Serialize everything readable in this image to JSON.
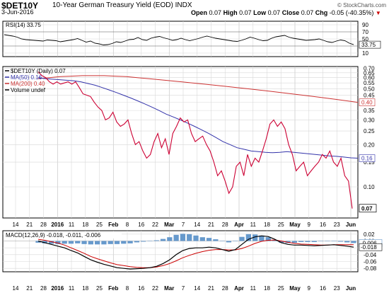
{
  "header": {
    "symbol": "$DET10Y",
    "description": "10-Year German Treasury Yield (EOD)",
    "exchange": "INDX",
    "date": "3-Jun-2016",
    "open_label": "Open",
    "open": "0.07",
    "high_label": "High",
    "high": "0.07",
    "low_label": "Low",
    "low": "0.07",
    "close_label": "Close",
    "close": "0.07",
    "chg_label": "Chg",
    "chg": "-0.05 (-40.35%)",
    "chg_icon": "down-triangle-icon",
    "watermark": "© StockCharts.com"
  },
  "colors": {
    "price": "#cc0033",
    "ma50": "#3333aa",
    "ma200": "#cc3333",
    "macd": "#000000",
    "signal": "#cc0000",
    "histogram": "#6699cc",
    "grid": "#d8d8d8",
    "rsi": "#000000"
  },
  "chart_data": [
    {
      "type": "line",
      "panel": "rsi",
      "legend": "RSI(14) 33.75",
      "y_ticks": [
        "90",
        "70",
        "50",
        "30",
        "10"
      ],
      "ylim": [
        0,
        100
      ],
      "current_value_label": "33.75",
      "series": [
        {
          "name": "RSI(14)",
          "values": [
            62,
            60,
            58,
            55,
            50,
            48,
            47,
            46,
            45,
            44,
            47,
            46,
            45,
            42,
            44,
            46,
            48,
            51,
            46,
            41,
            44,
            38,
            36,
            33,
            34,
            37,
            42,
            40,
            44,
            48,
            49,
            54,
            48,
            46,
            52,
            55,
            57,
            53,
            50,
            46,
            48,
            52,
            48,
            45,
            48,
            51,
            55,
            58,
            55,
            52,
            50,
            48,
            46,
            44,
            43,
            46,
            50,
            55,
            52,
            48,
            45,
            46,
            52,
            56,
            58,
            60,
            55,
            52,
            50,
            48,
            46,
            47,
            48,
            50,
            46,
            42,
            40,
            44,
            47,
            45,
            38,
            33.75
          ]
        }
      ]
    },
    {
      "type": "line",
      "panel": "price",
      "title": "$DET10Y (Daily) 0.07",
      "legend": [
        "$DET10Y (Daily) 0.07",
        "MA(50) 0.16",
        "MA(200) 0.40",
        "Volume undef"
      ],
      "scale": "log",
      "y_ticks": [
        "0.70",
        "0.65",
        "0.60",
        "0.55",
        "0.50",
        "0.45",
        "0.40",
        "0.35",
        "0.30",
        "0.25",
        "0.20",
        "0.15",
        "0.10"
      ],
      "ylim": [
        0.06,
        0.72
      ],
      "price_label": "0.07",
      "ma50_label": "0.16",
      "ma200_label": "0.40",
      "x_labels": [
        "14",
        "21",
        "28",
        "2016",
        "11",
        "18",
        "25",
        "Feb",
        "8",
        "16",
        "22",
        "Mar",
        "7",
        "14",
        "21",
        "28",
        "Apr",
        "11",
        "18",
        "25",
        "May",
        "9",
        "16",
        "23",
        "Jun"
      ],
      "series": [
        {
          "name": "$DET10Y",
          "values": [
            0.66,
            0.62,
            0.6,
            0.56,
            0.54,
            0.56,
            0.54,
            0.55,
            0.56,
            0.54,
            0.56,
            0.51,
            0.46,
            0.45,
            0.44,
            0.4,
            0.37,
            0.35,
            0.3,
            0.31,
            0.34,
            0.29,
            0.27,
            0.28,
            0.3,
            0.24,
            0.2,
            0.21,
            0.18,
            0.16,
            0.17,
            0.21,
            0.24,
            0.19,
            0.22,
            0.17,
            0.24,
            0.27,
            0.31,
            0.29,
            0.3,
            0.24,
            0.21,
            0.22,
            0.23,
            0.2,
            0.18,
            0.15,
            0.12,
            0.13,
            0.11,
            0.09,
            0.1,
            0.14,
            0.15,
            0.12,
            0.17,
            0.14,
            0.16,
            0.15,
            0.18,
            0.22,
            0.28,
            0.3,
            0.27,
            0.29,
            0.26,
            0.2,
            0.17,
            0.13,
            0.14,
            0.15,
            0.12,
            0.13,
            0.14,
            0.15,
            0.17,
            0.16,
            0.18,
            0.15,
            0.14,
            0.16,
            0.12,
            0.11,
            0.07
          ]
        },
        {
          "name": "MA(50)",
          "values": [
            0.6,
            0.59,
            0.585,
            0.58,
            0.575,
            0.57,
            0.56,
            0.545,
            0.53,
            0.51,
            0.49,
            0.47,
            0.45,
            0.43,
            0.41,
            0.39,
            0.37,
            0.35,
            0.33,
            0.315,
            0.3,
            0.285,
            0.27,
            0.255,
            0.24,
            0.225,
            0.21,
            0.2,
            0.19,
            0.185,
            0.18,
            0.178,
            0.176,
            0.175,
            0.176,
            0.178,
            0.176,
            0.174,
            0.172,
            0.17,
            0.168,
            0.166,
            0.165,
            0.163,
            0.161,
            0.16
          ]
        },
        {
          "name": "MA(200)",
          "values": [
            0.59,
            0.6,
            0.61,
            0.615,
            0.62,
            0.62,
            0.62,
            0.615,
            0.61,
            0.6,
            0.59,
            0.58,
            0.57,
            0.56,
            0.55,
            0.54,
            0.53,
            0.52,
            0.51,
            0.5,
            0.49,
            0.48,
            0.47,
            0.46,
            0.45,
            0.44,
            0.43,
            0.42,
            0.41,
            0.4
          ]
        }
      ]
    },
    {
      "type": "line",
      "panel": "macd",
      "legend": [
        "MACD(12,26,9) -0.018, -0.011, -0.006"
      ],
      "y_ticks": [
        "0.02",
        "0.00",
        "-0.02",
        "-0.04",
        "-0.06",
        "-0.08"
      ],
      "ylim": [
        -0.09,
        0.03
      ],
      "current_labels": [
        "-0.006",
        "-0.018"
      ],
      "x_labels": [
        "14",
        "21",
        "28",
        "2016",
        "11",
        "18",
        "25",
        "Feb",
        "8",
        "16",
        "22",
        "Mar",
        "7",
        "14",
        "21",
        "28",
        "Apr",
        "11",
        "18",
        "25",
        "May",
        "9",
        "16",
        "23",
        "Jun"
      ],
      "series": [
        {
          "name": "MACD",
          "values": [
            0.0,
            -0.005,
            -0.01,
            -0.015,
            -0.02,
            -0.028,
            -0.035,
            -0.045,
            -0.055,
            -0.062,
            -0.068,
            -0.073,
            -0.078,
            -0.08,
            -0.082,
            -0.081,
            -0.08,
            -0.078,
            -0.074,
            -0.066,
            -0.055,
            -0.04,
            -0.028,
            -0.022,
            -0.02,
            -0.02,
            -0.018,
            -0.02,
            -0.025,
            -0.03,
            -0.025,
            -0.01,
            0.005,
            0.012,
            0.015,
            0.013,
            0.005,
            -0.005,
            -0.01,
            -0.012,
            -0.012,
            -0.013,
            -0.014,
            -0.013,
            -0.012,
            -0.011,
            -0.013,
            -0.015,
            -0.018
          ]
        },
        {
          "name": "Signal",
          "values": [
            0.005,
            0.002,
            -0.002,
            -0.006,
            -0.012,
            -0.02,
            -0.028,
            -0.036,
            -0.045,
            -0.052,
            -0.058,
            -0.064,
            -0.069,
            -0.072,
            -0.075,
            -0.077,
            -0.078,
            -0.078,
            -0.076,
            -0.072,
            -0.066,
            -0.058,
            -0.049,
            -0.042,
            -0.036,
            -0.031,
            -0.027,
            -0.025,
            -0.025,
            -0.026,
            -0.026,
            -0.022,
            -0.015,
            -0.007,
            -0.001,
            0.002,
            0.003,
            0.0,
            -0.004,
            -0.007,
            -0.009,
            -0.01,
            -0.011,
            -0.012,
            -0.012,
            -0.011,
            -0.011,
            -0.011,
            -0.011
          ]
        },
        {
          "name": "Histogram",
          "values": [
            -0.005,
            -0.007,
            -0.008,
            -0.009,
            -0.008,
            -0.008,
            -0.007,
            -0.009,
            -0.01,
            -0.01,
            -0.01,
            -0.009,
            -0.009,
            -0.008,
            -0.007,
            -0.004,
            -0.002,
            0.0,
            0.002,
            0.006,
            0.011,
            0.018,
            0.021,
            0.02,
            0.016,
            0.011,
            0.009,
            0.005,
            0.0,
            -0.004,
            0.001,
            0.012,
            0.02,
            0.019,
            0.016,
            0.011,
            0.002,
            -0.005,
            -0.006,
            -0.005,
            -0.003,
            -0.003,
            -0.003,
            -0.001,
            0.0,
            0.0,
            -0.002,
            -0.004,
            -0.006
          ]
        }
      ]
    }
  ]
}
